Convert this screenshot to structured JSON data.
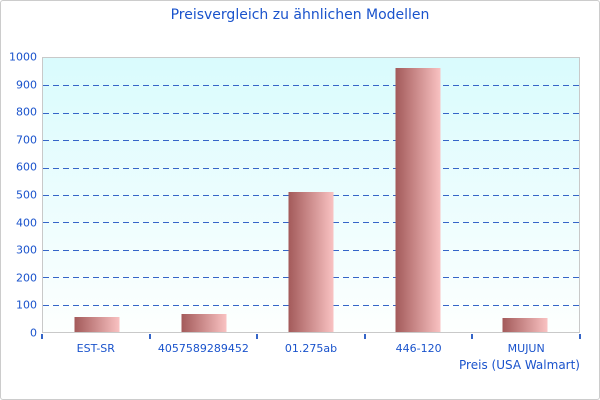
{
  "chart_data": {
    "type": "bar",
    "title": "Preisvergleich zu ähnlichen Modellen",
    "categories": [
      "EST-SR",
      "4057589289452",
      "01.275ab",
      "446-120",
      "MUJUN"
    ],
    "values": [
      55,
      64,
      510,
      965,
      50
    ],
    "xlabel": "Preis (USA Walmart)",
    "ylabel": "",
    "ylim": [
      0,
      1000
    ],
    "ytick_step": 100,
    "grid": "horizontal-dashed",
    "legend": "none",
    "colors": {
      "text": "#1a53cc",
      "gridline": "#3565c8",
      "bar_gradient_left": "#a35a5a",
      "bar_gradient_right": "#f9c2c2",
      "plot_bg_top": "#d9fbfd",
      "plot_bg_bottom": "#fdfffe",
      "plot_border": "#c9c9c9",
      "outer_border": "#cccccc"
    }
  }
}
